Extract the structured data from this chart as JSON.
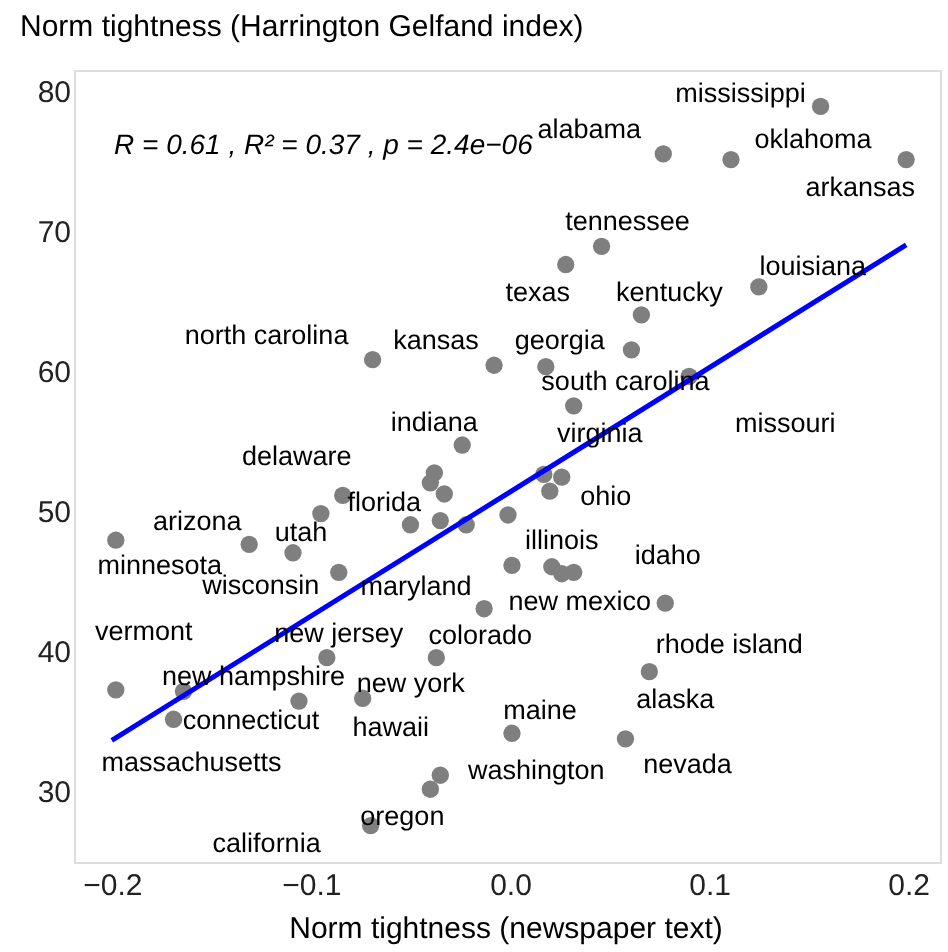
{
  "chart_data": {
    "type": "scatter",
    "xlabel": "Norm tightness (newspaper text)",
    "ylabel": "Norm tightness (Harrington Gelfand index)",
    "xlim": [
      -0.219,
      0.216
    ],
    "ylim": [
      24.9,
      81.5
    ],
    "xticks": [
      {
        "value": -0.2,
        "label": "−0.2"
      },
      {
        "value": -0.1,
        "label": "−0.1"
      },
      {
        "value": 0,
        "label": "0.0"
      },
      0.1,
      0.2
    ],
    "yticks": [
      30,
      40,
      50,
      60,
      70,
      80
    ],
    "series": [
      {
        "color": "#7f7f7f",
        "x": [
          0.156,
          0.077,
          0.111,
          0.199,
          0.046,
          0.028,
          0.125,
          0.066,
          0.061,
          -0.069,
          -0.008,
          0.018,
          0.09,
          0.032,
          -0.024,
          -0.084,
          -0.04,
          0.026,
          -0.131,
          -0.109,
          -0.198,
          -0.086,
          -0.013,
          0.026,
          0.021,
          0.032,
          0.078,
          -0.198,
          -0.164,
          -0.169,
          -0.106,
          -0.092,
          -0.037,
          -0.074,
          0.07,
          0.001,
          0.058,
          -0.035,
          -0.04,
          -0.07,
          -0.038,
          -0.033,
          0.017,
          0.02,
          -0.001,
          -0.095,
          -0.05,
          -0.035,
          -0.022,
          0.001
        ],
        "values": [
          78.9,
          75.5,
          75.1,
          75.1,
          68.9,
          67.6,
          66.0,
          64.0,
          61.5,
          60.8,
          60.4,
          60.3,
          59.6,
          57.5,
          54.7,
          51.1,
          52.0,
          52.4,
          47.6,
          47.0,
          47.9,
          45.6,
          43.0,
          45.5,
          46.0,
          45.6,
          43.4,
          37.2,
          37.1,
          35.1,
          36.4,
          39.5,
          39.5,
          36.6,
          38.5,
          34.1,
          33.7,
          31.1,
          30.1,
          27.5,
          52.7,
          51.2,
          52.6,
          51.4,
          49.7,
          49.8,
          49.0,
          49.3,
          49.0,
          46.1
        ]
      },
      {
        "type": "line",
        "color": "#0000ff",
        "x": [
          -0.2,
          0.199
        ],
        "values": [
          33.6,
          69.0
        ]
      }
    ],
    "annotations": [
      "R = 0.61 , R² = 0.37 , p = 2.4e−06",
      {
        "text": "mississippi",
        "x": 0.156,
        "y": 78.9
      },
      {
        "text": "alabama",
        "x": 0.077,
        "y": 75.5
      },
      {
        "text": "oklahoma",
        "x": 0.111,
        "y": 75.1
      },
      {
        "text": "arkansas",
        "x": 0.199,
        "y": 75.1
      },
      {
        "text": "tennessee",
        "x": 0.046,
        "y": 68.9
      },
      {
        "text": "texas",
        "x": 0.028,
        "y": 67.6
      },
      {
        "text": "louisiana",
        "x": 0.125,
        "y": 66.0
      },
      {
        "text": "kentucky",
        "x": 0.066,
        "y": 64.0
      },
      {
        "text": "south carolina",
        "x": 0.061,
        "y": 61.5
      },
      {
        "text": "north carolina",
        "x": -0.069,
        "y": 60.8
      },
      {
        "text": "kansas",
        "x": -0.008,
        "y": 60.4
      },
      {
        "text": "georgia",
        "x": 0.018,
        "y": 60.3
      },
      {
        "text": "missouri",
        "x": 0.09,
        "y": 59.6
      },
      {
        "text": "virginia",
        "x": 0.032,
        "y": 57.5
      },
      {
        "text": "indiana",
        "x": -0.024,
        "y": 54.7
      },
      {
        "text": "delaware",
        "x": -0.084,
        "y": 51.1
      },
      {
        "text": "florida",
        "x": -0.04,
        "y": 52.0
      },
      {
        "text": "ohio",
        "x": 0.026,
        "y": 52.4
      },
      {
        "text": "arizona",
        "x": -0.131,
        "y": 47.6
      },
      {
        "text": "utah",
        "x": -0.109,
        "y": 47.0
      },
      {
        "text": "minnesota",
        "x": -0.198,
        "y": 47.9
      },
      {
        "text": "wisconsin",
        "x": -0.086,
        "y": 45.6
      },
      {
        "text": "maryland",
        "x": -0.013,
        "y": 43.0
      },
      {
        "text": "new mexico",
        "x": 0.026,
        "y": 45.5
      },
      {
        "text": "illinois",
        "x": 0.021,
        "y": 46.0
      },
      {
        "text": "idaho",
        "x": 0.032,
        "y": 45.6
      },
      {
        "text": "rhode island",
        "x": 0.078,
        "y": 43.4
      },
      {
        "text": "vermont",
        "x": -0.198,
        "y": 37.2
      },
      {
        "text": "new hampshire",
        "x": -0.164,
        "y": 37.1
      },
      {
        "text": "massachusetts",
        "x": -0.169,
        "y": 35.1
      },
      {
        "text": "connecticut",
        "x": -0.106,
        "y": 36.4
      },
      {
        "text": "new jersey",
        "x": -0.092,
        "y": 39.5
      },
      {
        "text": "colorado",
        "x": -0.037,
        "y": 39.5
      },
      {
        "text": "new york",
        "x": -0.074,
        "y": 36.6
      },
      {
        "text": "hawaii",
        "x": -0.074,
        "y": 36.6
      },
      {
        "text": "alaska",
        "x": 0.07,
        "y": 38.5
      },
      {
        "text": "maine",
        "x": 0.001,
        "y": 34.1
      },
      {
        "text": "nevada",
        "x": 0.058,
        "y": 33.7
      },
      {
        "text": "washington",
        "x": -0.035,
        "y": 31.1
      },
      {
        "text": "oregon",
        "x": -0.04,
        "y": 30.1
      },
      {
        "text": "california",
        "x": -0.07,
        "y": 27.5
      }
    ]
  }
}
